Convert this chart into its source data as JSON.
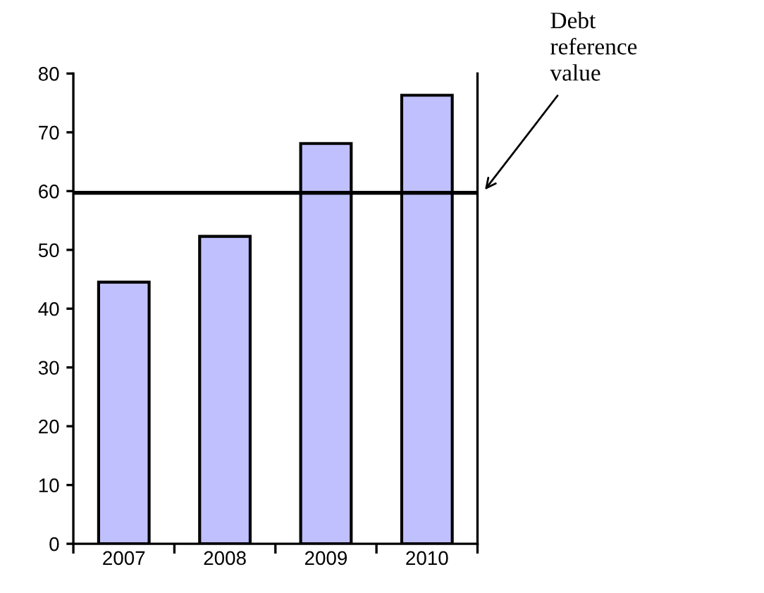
{
  "chart_data": {
    "type": "bar",
    "categories": [
      "2007",
      "2008",
      "2009",
      "2010"
    ],
    "values": [
      44.5,
      52.3,
      68.1,
      76.3
    ],
    "color": "#c0c0ff",
    "ylim": [
      0,
      80
    ],
    "yticks": [
      0,
      10,
      20,
      30,
      40,
      50,
      60,
      70,
      80
    ],
    "grid": false,
    "legend": false,
    "ref_lines": [
      {
        "axis": "y",
        "value": 59.7,
        "label": "Debt\nreference\nvalue",
        "color": "#000000",
        "line_style": "solid"
      }
    ]
  }
}
